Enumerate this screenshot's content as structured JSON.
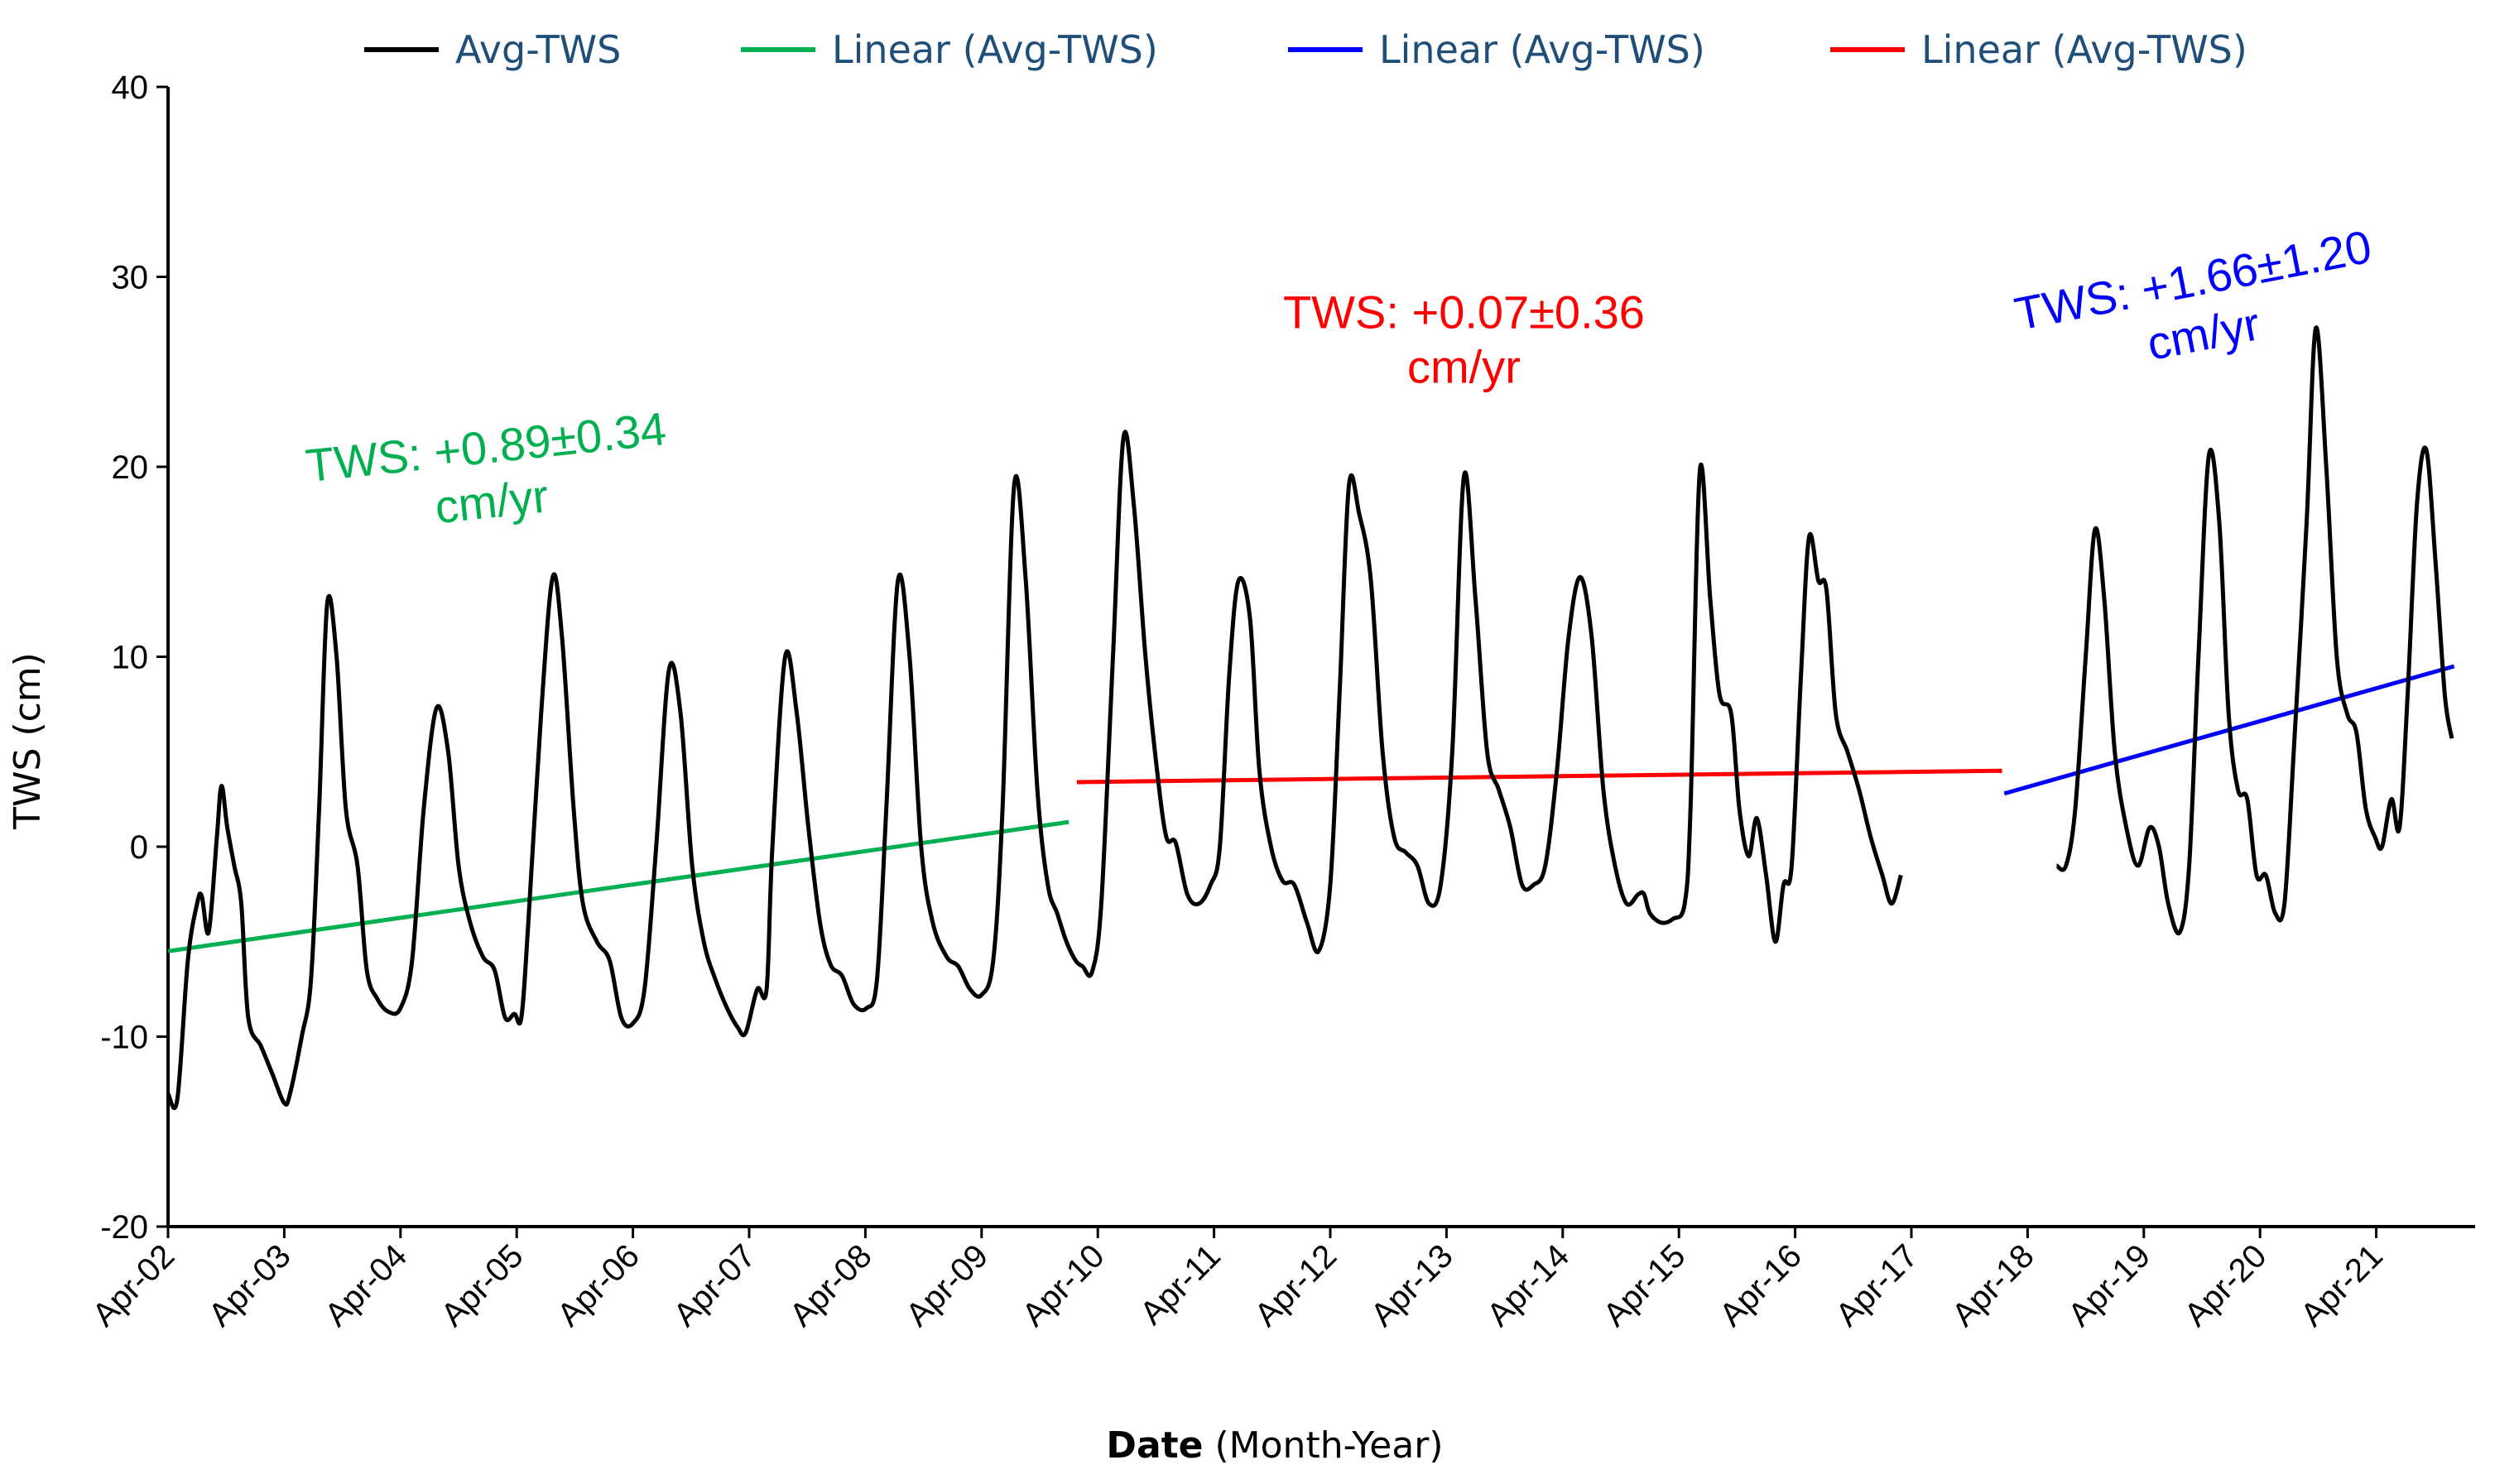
{
  "chart_data": {
    "type": "line",
    "title": "",
    "xlabel_bold": "Date",
    "xlabel_rest": " (Month-Year)",
    "ylabel": "TWS (cm)",
    "ylim": [
      -20,
      40
    ],
    "yticks": [
      -20,
      -10,
      0,
      10,
      20,
      30,
      40
    ],
    "xlim": [
      2002.25,
      2022.0
    ],
    "xticks": [
      {
        "x": 2002.25,
        "label": "Apr-02"
      },
      {
        "x": 2003.25,
        "label": "Apr-03"
      },
      {
        "x": 2004.25,
        "label": "Apr-04"
      },
      {
        "x": 2005.25,
        "label": "Apr-05"
      },
      {
        "x": 2006.25,
        "label": "Apr-06"
      },
      {
        "x": 2007.25,
        "label": "Apr-07"
      },
      {
        "x": 2008.25,
        "label": "Apr-08"
      },
      {
        "x": 2009.25,
        "label": "Apr-09"
      },
      {
        "x": 2010.25,
        "label": "Apr-10"
      },
      {
        "x": 2011.25,
        "label": "Apr-11"
      },
      {
        "x": 2012.25,
        "label": "Apr-12"
      },
      {
        "x": 2013.25,
        "label": "Apr-13"
      },
      {
        "x": 2014.25,
        "label": "Apr-14"
      },
      {
        "x": 2015.25,
        "label": "Apr-15"
      },
      {
        "x": 2016.25,
        "label": "Apr-16"
      },
      {
        "x": 2017.25,
        "label": "Apr-17"
      },
      {
        "x": 2018.25,
        "label": "Apr-18"
      },
      {
        "x": 2019.25,
        "label": "Apr-19"
      },
      {
        "x": 2020.25,
        "label": "Apr-20"
      },
      {
        "x": 2021.25,
        "label": "Apr-21"
      }
    ],
    "legend": [
      {
        "label": "Avg-TWS",
        "color": "#000000"
      },
      {
        "label": "Linear (Avg-TWS)",
        "color": "#00b050"
      },
      {
        "label": "Linear (Avg-TWS)",
        "color": "#0000ff"
      },
      {
        "label": "Linear (Avg-TWS)",
        "color": "#ff0000"
      }
    ],
    "series": [
      {
        "name": "Avg-TWS",
        "color": "#000000",
        "segments": [
          [
            [
              2002.25,
              -13
            ],
            [
              2002.33,
              -13.3
            ],
            [
              2002.42,
              -6
            ],
            [
              2002.5,
              -3
            ],
            [
              2002.54,
              -2.6
            ],
            [
              2002.6,
              -4.5
            ],
            [
              2002.67,
              0.5
            ],
            [
              2002.71,
              3.2
            ],
            [
              2002.76,
              1
            ],
            [
              2002.82,
              -1
            ],
            [
              2002.88,
              -3
            ],
            [
              2002.94,
              -9
            ],
            [
              2003.05,
              -10.5
            ],
            [
              2003.15,
              -12
            ],
            [
              2003.25,
              -13.5
            ],
            [
              2003.3,
              -13
            ],
            [
              2003.4,
              -10
            ],
            [
              2003.48,
              -7
            ],
            [
              2003.55,
              2
            ],
            [
              2003.62,
              12.8
            ],
            [
              2003.7,
              10
            ],
            [
              2003.78,
              2
            ],
            [
              2003.88,
              -1
            ],
            [
              2003.96,
              -6.5
            ],
            [
              2004.05,
              -8
            ],
            [
              2004.15,
              -8.7
            ],
            [
              2004.25,
              -8.5
            ],
            [
              2004.35,
              -6
            ],
            [
              2004.45,
              2
            ],
            [
              2004.56,
              7.3
            ],
            [
              2004.66,
              5
            ],
            [
              2004.75,
              -1
            ],
            [
              2004.85,
              -4
            ],
            [
              2004.96,
              -5.8
            ],
            [
              2005.06,
              -6.5
            ],
            [
              2005.15,
              -9
            ],
            [
              2005.23,
              -8.8
            ],
            [
              2005.29,
              -9
            ],
            [
              2005.35,
              -4
            ],
            [
              2005.46,
              7
            ],
            [
              2005.56,
              14.2
            ],
            [
              2005.64,
              11
            ],
            [
              2005.74,
              2
            ],
            [
              2005.82,
              -3
            ],
            [
              2005.94,
              -5
            ],
            [
              2006.05,
              -6
            ],
            [
              2006.15,
              -9
            ],
            [
              2006.25,
              -9.3
            ],
            [
              2006.35,
              -7.5
            ],
            [
              2006.45,
              0
            ],
            [
              2006.56,
              9.3
            ],
            [
              2006.66,
              7
            ],
            [
              2006.76,
              -1
            ],
            [
              2006.86,
              -5
            ],
            [
              2006.96,
              -7
            ],
            [
              2007.06,
              -8.5
            ],
            [
              2007.15,
              -9.5
            ],
            [
              2007.22,
              -9.8
            ],
            [
              2007.32,
              -7.5
            ],
            [
              2007.4,
              -7.5
            ],
            [
              2007.45,
              0
            ],
            [
              2007.56,
              10
            ],
            [
              2007.66,
              7
            ],
            [
              2007.76,
              1
            ],
            [
              2007.86,
              -4
            ],
            [
              2007.95,
              -6.2
            ],
            [
              2008.05,
              -6.8
            ],
            [
              2008.15,
              -8.3
            ],
            [
              2008.26,
              -8.5
            ],
            [
              2008.35,
              -7
            ],
            [
              2008.43,
              2
            ],
            [
              2008.53,
              14
            ],
            [
              2008.63,
              10
            ],
            [
              2008.73,
              0
            ],
            [
              2008.83,
              -4
            ],
            [
              2008.95,
              -5.8
            ],
            [
              2009.05,
              -6.3
            ],
            [
              2009.15,
              -7.5
            ],
            [
              2009.25,
              -7.8
            ],
            [
              2009.35,
              -6
            ],
            [
              2009.43,
              2
            ],
            [
              2009.53,
              19
            ],
            [
              2009.63,
              14
            ],
            [
              2009.73,
              3
            ],
            [
              2009.82,
              -2
            ],
            [
              2009.9,
              -3.5
            ],
            [
              2009.98,
              -5
            ],
            [
              2010.06,
              -6
            ],
            [
              2010.12,
              -6.3
            ],
            [
              2010.2,
              -6.6
            ],
            [
              2010.28,
              -3
            ],
            [
              2010.38,
              10
            ],
            [
              2010.47,
              21.5
            ],
            [
              2010.56,
              18
            ],
            [
              2010.66,
              10
            ],
            [
              2010.76,
              4
            ],
            [
              2010.84,
              0.5
            ],
            [
              2010.92,
              0.2
            ],
            [
              2011.02,
              -2.5
            ],
            [
              2011.12,
              -3
            ],
            [
              2011.22,
              -2
            ],
            [
              2011.3,
              0
            ],
            [
              2011.38,
              9
            ],
            [
              2011.46,
              14
            ],
            [
              2011.56,
              12
            ],
            [
              2011.64,
              4
            ],
            [
              2011.74,
              0
            ],
            [
              2011.84,
              -1.8
            ],
            [
              2011.94,
              -2
            ],
            [
              2012.05,
              -4
            ],
            [
              2012.15,
              -5.5
            ],
            [
              2012.25,
              -2
            ],
            [
              2012.33,
              8
            ],
            [
              2012.41,
              19
            ],
            [
              2012.5,
              17.5
            ],
            [
              2012.6,
              14
            ],
            [
              2012.7,
              5
            ],
            [
              2012.8,
              0.5
            ],
            [
              2012.9,
              -0.3
            ],
            [
              2013.0,
              -1
            ],
            [
              2013.1,
              -3
            ],
            [
              2013.2,
              -2
            ],
            [
              2013.3,
              5
            ],
            [
              2013.4,
              19.5
            ],
            [
              2013.5,
              13
            ],
            [
              2013.6,
              5
            ],
            [
              2013.7,
              3
            ],
            [
              2013.8,
              1
            ],
            [
              2013.9,
              -2
            ],
            [
              2014.0,
              -2
            ],
            [
              2014.1,
              -1
            ],
            [
              2014.2,
              4
            ],
            [
              2014.3,
              11
            ],
            [
              2014.4,
              14.2
            ],
            [
              2014.5,
              11
            ],
            [
              2014.6,
              3
            ],
            [
              2014.7,
              -1
            ],
            [
              2014.8,
              -3
            ],
            [
              2014.9,
              -2.5
            ],
            [
              2014.95,
              -2.5
            ],
            [
              2015.0,
              -3.5
            ],
            [
              2015.1,
              -4
            ],
            [
              2015.2,
              -3.8
            ],
            [
              2015.3,
              -3
            ],
            [
              2015.35,
              2
            ],
            [
              2015.43,
              19.8
            ],
            [
              2015.52,
              13
            ],
            [
              2015.6,
              8
            ],
            [
              2015.7,
              7
            ],
            [
              2015.77,
              2
            ],
            [
              2015.85,
              -0.5
            ],
            [
              2015.92,
              1.5
            ],
            [
              2016.0,
              -1.5
            ],
            [
              2016.08,
              -5
            ],
            [
              2016.15,
              -2
            ],
            [
              2016.22,
              -1
            ],
            [
              2016.3,
              9
            ],
            [
              2016.37,
              16.3
            ],
            [
              2016.45,
              14
            ],
            [
              2016.52,
              13.5
            ],
            [
              2016.6,
              7
            ],
            [
              2016.7,
              5
            ],
            [
              2016.8,
              3
            ],
            [
              2016.9,
              0.5
            ],
            [
              2017.0,
              -1.5
            ],
            [
              2017.08,
              -3
            ],
            [
              2017.16,
              -1.5
            ]
          ],
          [
            [
              2018.5,
              -1
            ],
            [
              2018.58,
              -1
            ],
            [
              2018.66,
              2
            ],
            [
              2018.75,
              10
            ],
            [
              2018.83,
              16.7
            ],
            [
              2018.91,
              13
            ],
            [
              2019.0,
              5
            ],
            [
              2019.1,
              1
            ],
            [
              2019.2,
              -1
            ],
            [
              2019.3,
              1
            ],
            [
              2019.38,
              0
            ],
            [
              2019.46,
              -3
            ],
            [
              2019.56,
              -4.5
            ],
            [
              2019.64,
              -1
            ],
            [
              2019.72,
              10
            ],
            [
              2019.81,
              20.6
            ],
            [
              2019.9,
              17
            ],
            [
              2019.98,
              7
            ],
            [
              2020.06,
              3
            ],
            [
              2020.14,
              2.5
            ],
            [
              2020.22,
              -1.5
            ],
            [
              2020.3,
              -1.5
            ],
            [
              2020.38,
              -3.5
            ],
            [
              2020.46,
              -3
            ],
            [
              2020.54,
              5
            ],
            [
              2020.65,
              17
            ],
            [
              2020.73,
              27.3
            ],
            [
              2020.82,
              20
            ],
            [
              2020.91,
              10
            ],
            [
              2021.0,
              7
            ],
            [
              2021.08,
              6
            ],
            [
              2021.16,
              2
            ],
            [
              2021.24,
              0.5
            ],
            [
              2021.3,
              0
            ],
            [
              2021.38,
              2.5
            ],
            [
              2021.45,
              1
            ],
            [
              2021.52,
              8
            ],
            [
              2021.6,
              18
            ],
            [
              2021.68,
              20.9
            ],
            [
              2021.76,
              15
            ],
            [
              2021.84,
              8
            ],
            [
              2021.9,
              5.7
            ]
          ]
        ]
      },
      {
        "name": "Linear (Avg-TWS)",
        "color": "#00b050",
        "trend": [
          [
            2002.25,
            -5.5
          ],
          [
            2010.0,
            1.3
          ]
        ]
      },
      {
        "name": "Linear (Avg-TWS)",
        "color": "#ff0000",
        "trend": [
          [
            2010.07,
            3.4
          ],
          [
            2018.03,
            4.0
          ]
        ]
      },
      {
        "name": "Linear (Avg-TWS)",
        "color": "#0000ff",
        "trend": [
          [
            2018.05,
            2.8
          ],
          [
            2021.92,
            9.5
          ]
        ]
      }
    ],
    "annotations": [
      {
        "lines": [
          "TWS: +0.89±0.34",
          "cm/yr"
        ],
        "color": "#00b050",
        "x": 2005.0,
        "y": 20.2,
        "angle": -6
      },
      {
        "lines": [
          "TWS: +0.07±0.36",
          "cm/yr"
        ],
        "color": "#ff0000",
        "x": 2013.4,
        "y": 27.3,
        "angle": 0
      },
      {
        "lines": [
          "TWS: +1.66±1.20",
          "cm/yr"
        ],
        "color": "#0000ff",
        "x": 2019.7,
        "y": 29.0,
        "angle": -11
      }
    ]
  }
}
